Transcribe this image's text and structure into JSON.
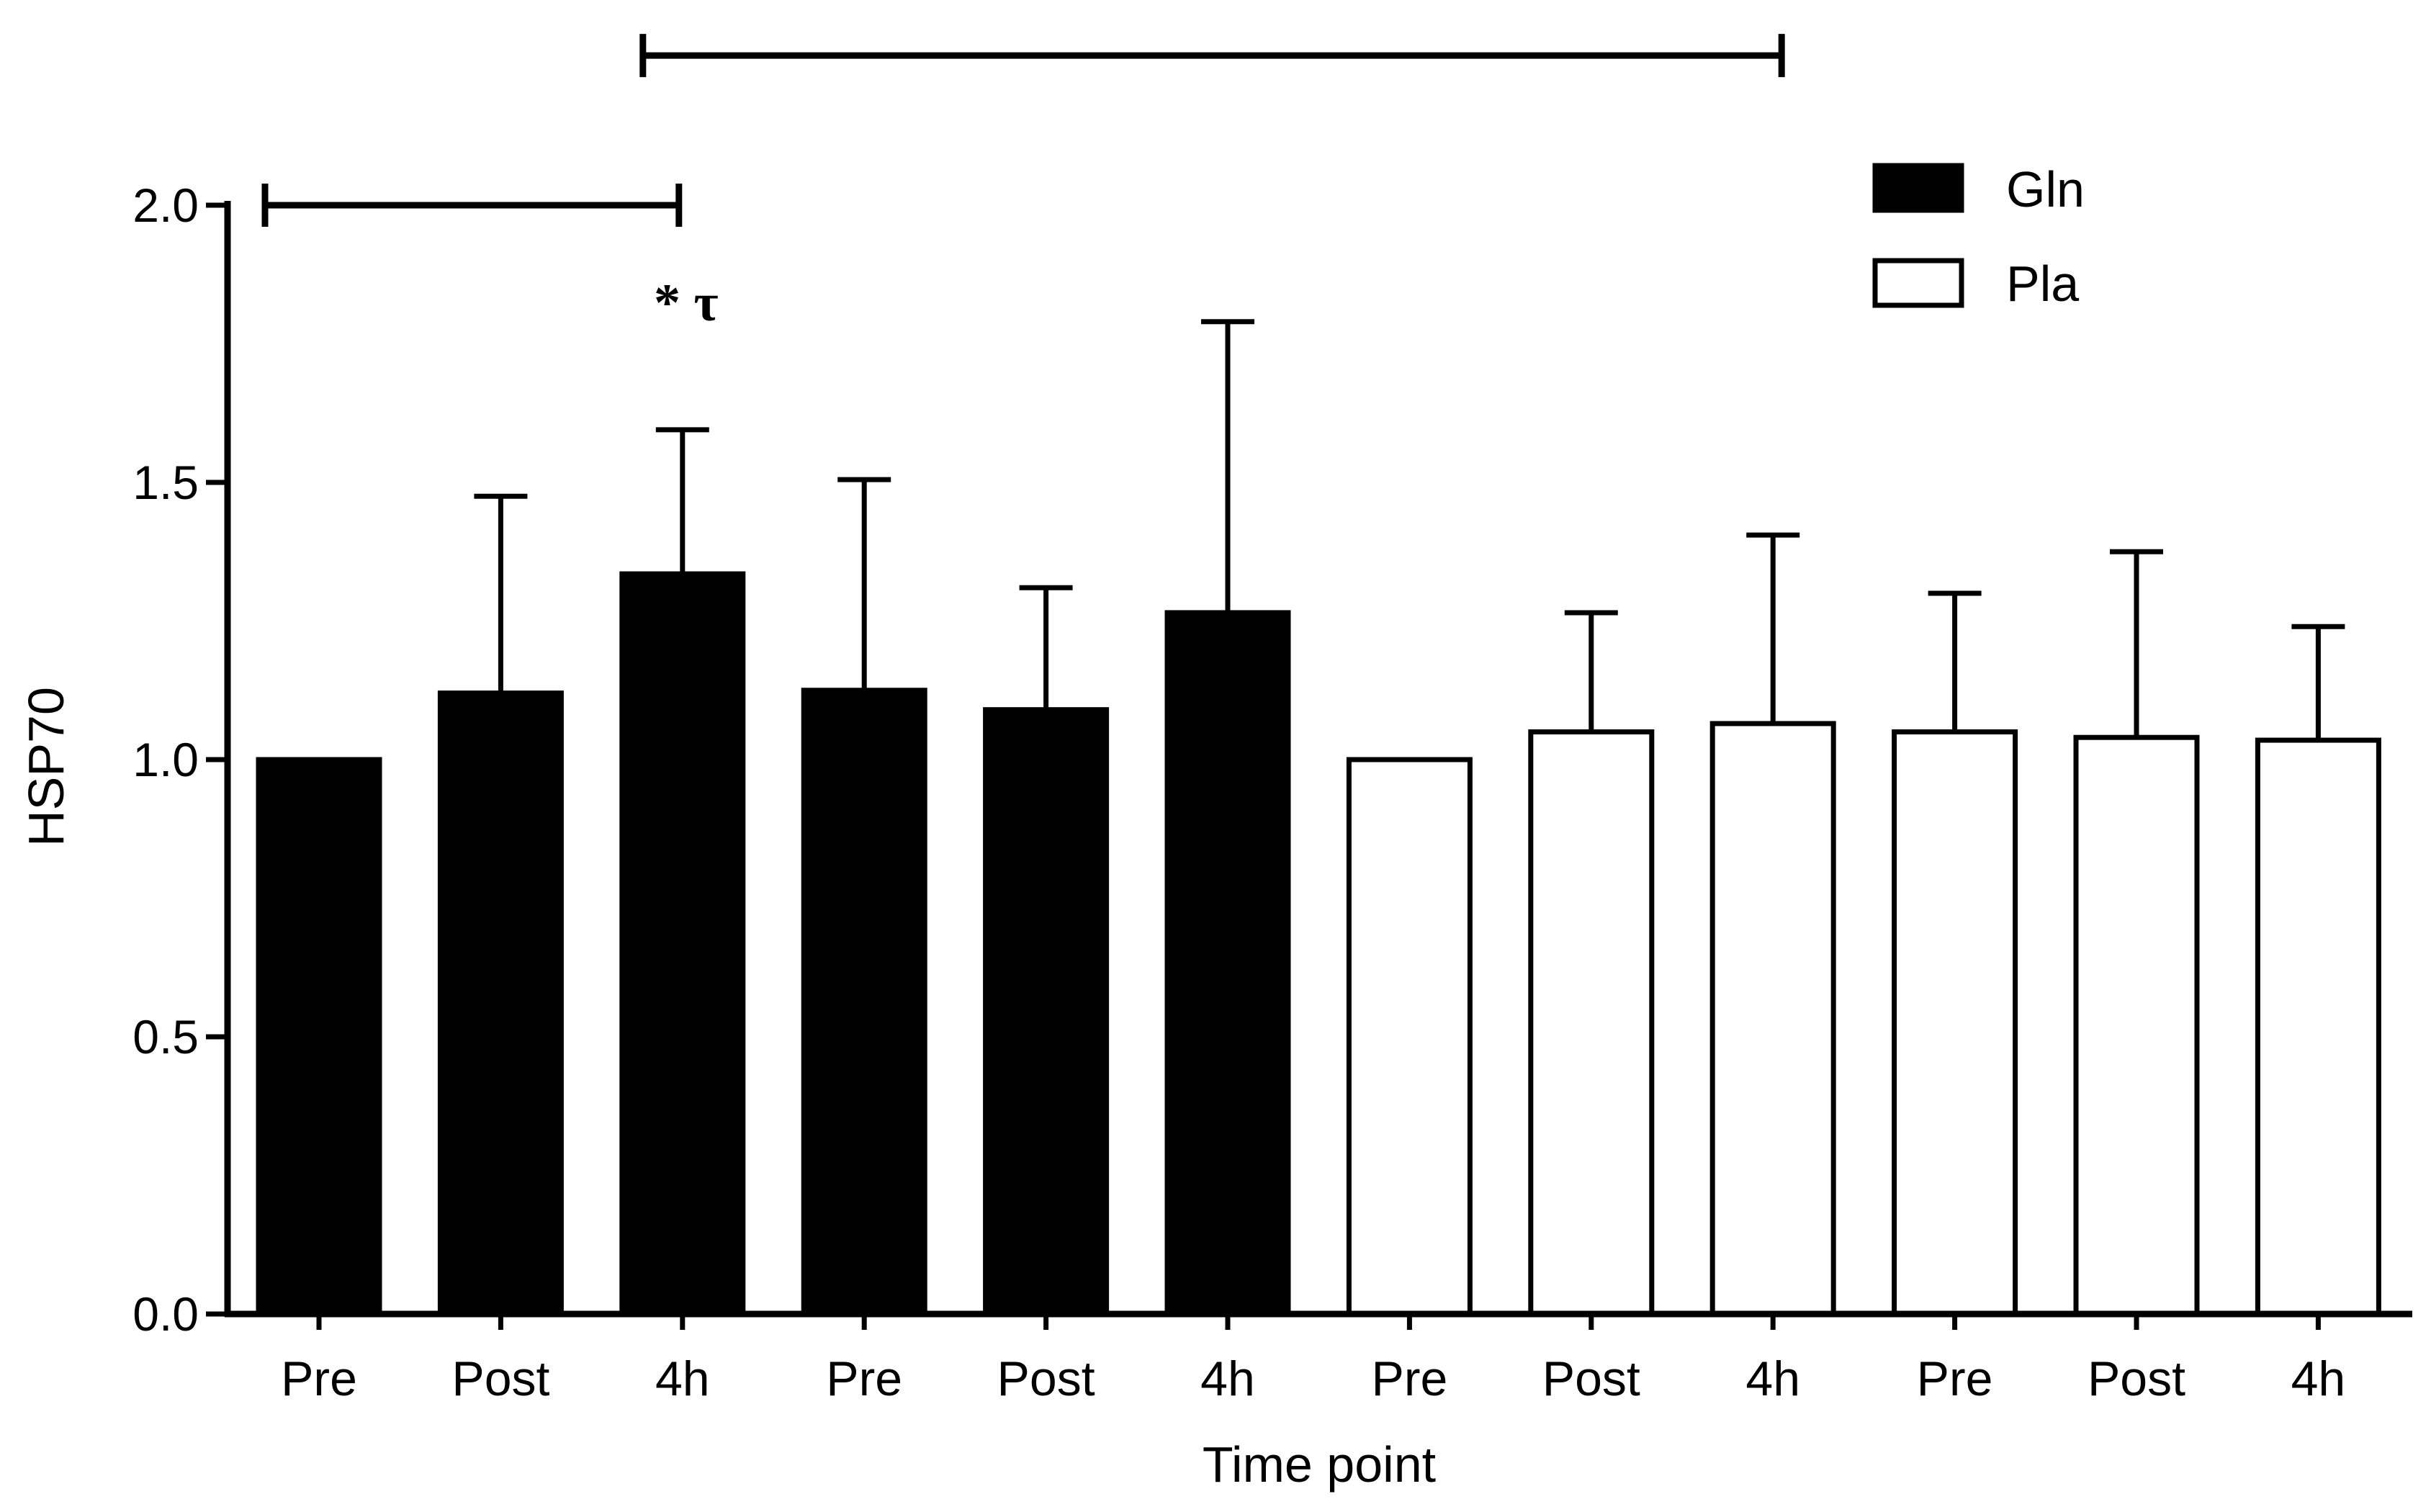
{
  "chart_data": {
    "type": "bar",
    "title": "",
    "xlabel": "Time point",
    "ylabel": "HSP70",
    "ylim": [
      0,
      2.0
    ],
    "yticks": [
      0.0,
      0.5,
      1.0,
      1.5,
      2.0
    ],
    "ytick_labels": [
      "0.0",
      "0.5",
      "1.0",
      "1.5",
      "2.0"
    ],
    "categories": [
      "Pre",
      "Post",
      "4h",
      "Pre",
      "Post",
      "4h",
      "Pre",
      "Post",
      "4h",
      "Pre",
      "Post",
      "4h"
    ],
    "values": [
      1.0,
      1.12,
      1.335,
      1.125,
      1.09,
      1.265,
      1.0,
      1.05,
      1.065,
      1.05,
      1.04,
      1.035
    ],
    "error_upper": [
      1.0,
      1.475,
      1.595,
      1.505,
      1.31,
      1.79,
      1.0,
      1.265,
      1.405,
      1.3,
      1.375,
      1.24
    ],
    "groups": [
      "Gln",
      "Gln",
      "Gln",
      "Gln",
      "Gln",
      "Gln",
      "Pla",
      "Pla",
      "Pla",
      "Pla",
      "Pla",
      "Pla"
    ],
    "legend": [
      {
        "name": "Gln",
        "fill": "#000000"
      },
      {
        "name": "Pla",
        "fill": "#ffffff"
      }
    ],
    "legend_position": "top-right",
    "annotation": {
      "text": "* τ",
      "category_index": 2
    },
    "significance_brackets": [
      {
        "from_index": 0,
        "to_index": 2,
        "y": 2.0
      },
      {
        "from_index": 2,
        "to_index": 8,
        "y": 2.27
      }
    ],
    "colors": {
      "gln": "#000000",
      "pla": "#ffffff",
      "stroke": "#000000"
    }
  }
}
